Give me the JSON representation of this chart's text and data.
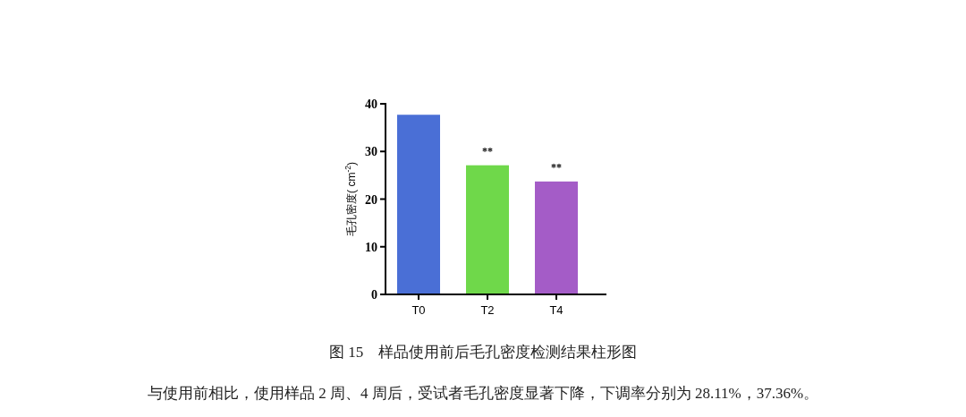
{
  "chart_data": {
    "type": "bar",
    "ylabel": "毛孔密度( cm$^{-2}$)",
    "categories": [
      "T0",
      "T2",
      "T4"
    ],
    "values": [
      37.7,
      27.1,
      23.7
    ],
    "colors": [
      "#4a6fd6",
      "#6fd84a",
      "#a45cc7"
    ],
    "ylim": [
      0,
      40
    ],
    "yticks": [
      0,
      10,
      20,
      30,
      40
    ],
    "grid": false,
    "annotations": [
      {
        "text": "**",
        "x": "T2",
        "y": 27.1
      },
      {
        "text": "**",
        "x": "T4",
        "y": 23.7
      },
      "图 15　样品使用前后毛孔密度检测结果柱形图",
      "与使用前相比，使用样品 2 周、4 周后，受试者毛孔密度显著下降，下调率分别为 28.11%，37.36%。"
    ]
  }
}
